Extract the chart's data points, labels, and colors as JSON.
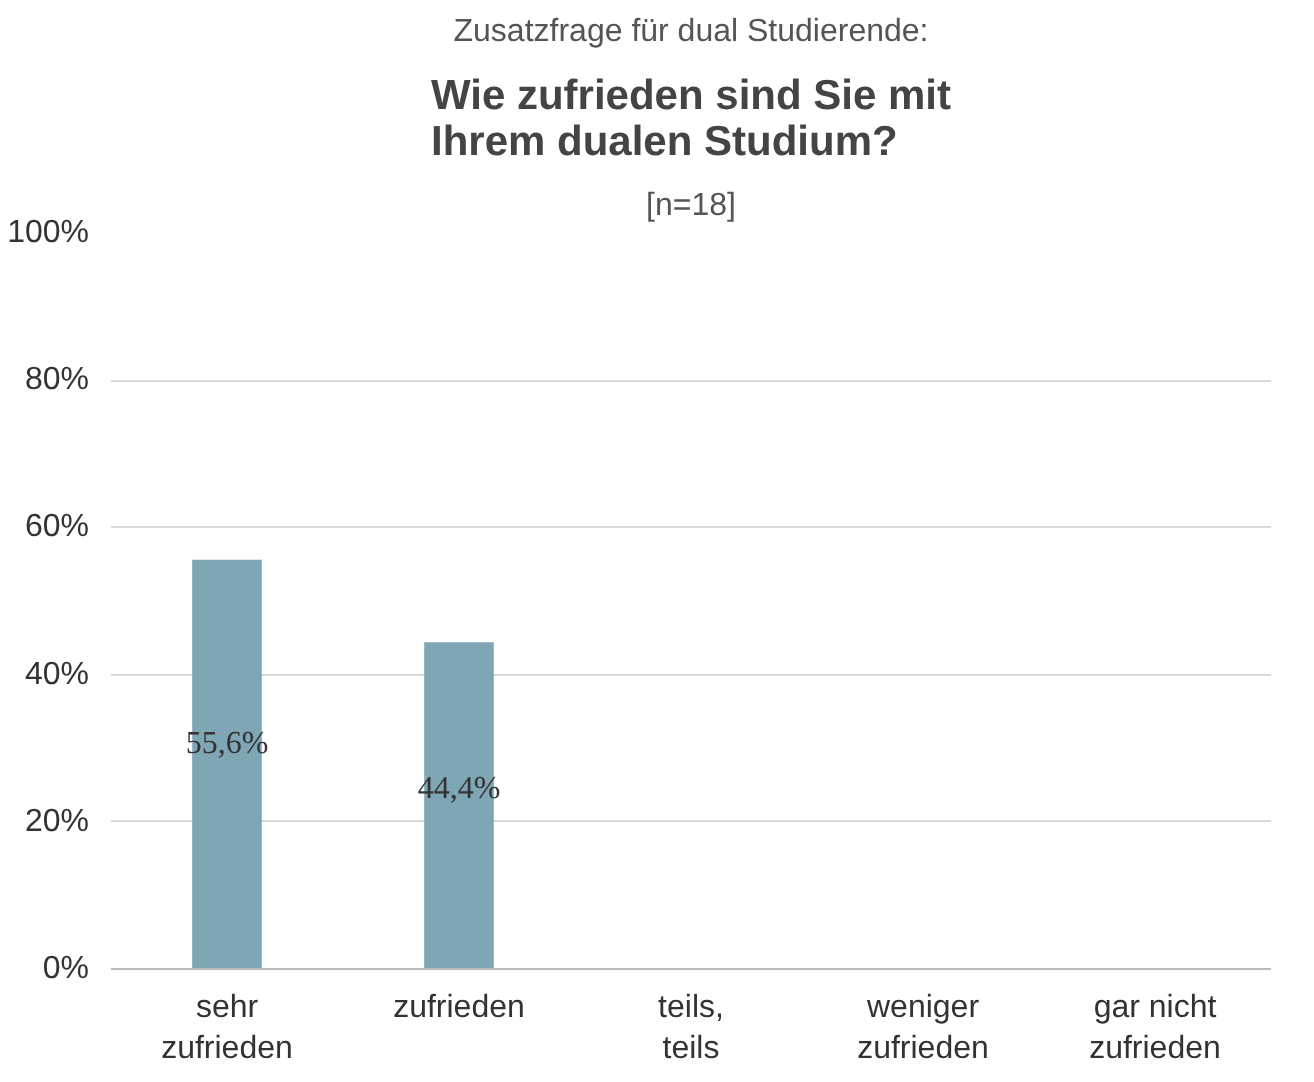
{
  "chart_data": {
    "type": "bar",
    "annotations": [
      "Zusatzfrage für dual Studierende:"
    ],
    "title": "Wie zufrieden sind Sie mit\nIhrem dualen Studium?",
    "subtitle": "[n=18]",
    "categories": [
      "sehr\nzufrieden",
      "zufrieden",
      "teils,\nteils",
      "weniger\nzufrieden",
      "gar nicht\nzufrieden"
    ],
    "values": [
      55.6,
      44.4,
      null,
      null,
      null
    ],
    "value_labels": [
      "55,6%",
      "44,4%",
      null,
      null,
      null
    ],
    "color": "#7fa6b4",
    "ylim": [
      0,
      100
    ],
    "yticks": [
      {
        "value": 0,
        "label": "0%"
      },
      {
        "value": 20,
        "label": "20%"
      },
      {
        "value": 40,
        "label": "40%"
      },
      {
        "value": 60,
        "label": "60%"
      },
      {
        "value": 80,
        "label": "80%"
      },
      {
        "value": 100,
        "label": "100%"
      }
    ],
    "grid": "y"
  }
}
